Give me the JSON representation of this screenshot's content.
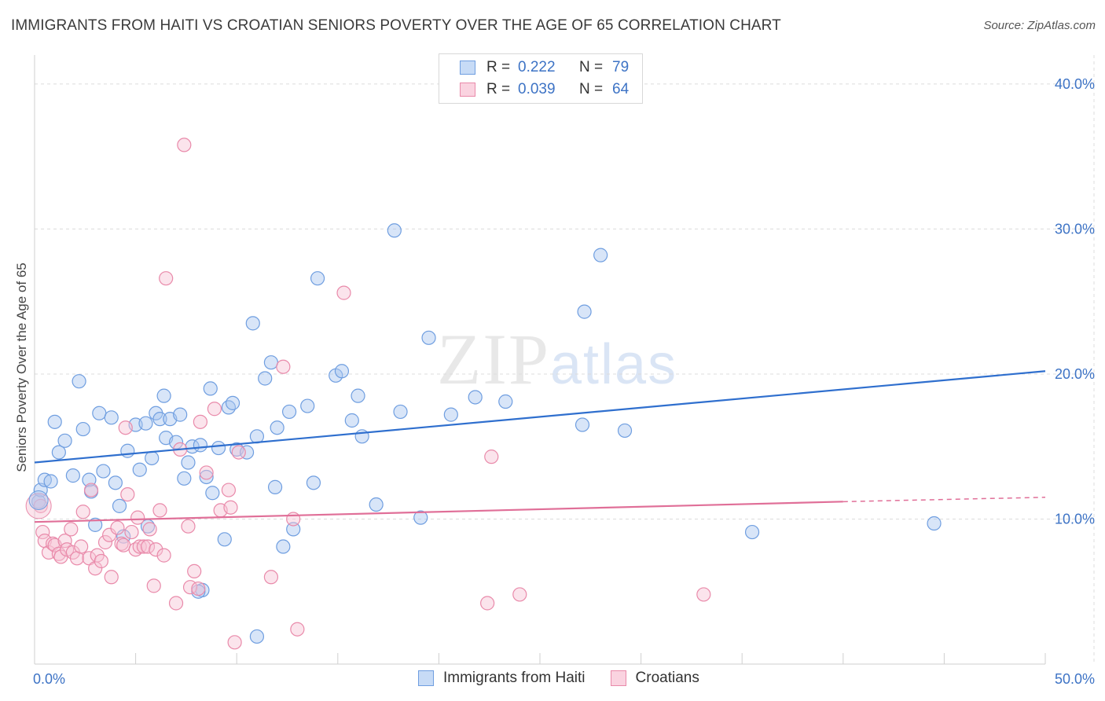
{
  "title": "IMMIGRANTS FROM HAITI VS CROATIAN SENIORS POVERTY OVER THE AGE OF 65 CORRELATION CHART",
  "source": "Source: ZipAtlas.com",
  "watermark": {
    "zip": "ZIP",
    "atlas": "atlas"
  },
  "legend": [
    {
      "r_label": "R =",
      "r_value": "0.222",
      "n_label": "N =",
      "n_value": "79",
      "color": "#a8c6f0",
      "border": "#6f9ee0"
    },
    {
      "r_label": "R =",
      "r_value": "0.039",
      "n_label": "N =",
      "n_value": "64",
      "color": "#f7c3d4",
      "border": "#e98aaa"
    }
  ],
  "bottom_legend": [
    "Immigrants from Haiti",
    "Croatians"
  ],
  "chart_data": {
    "type": "scatter",
    "ylabel": "Seniors Poverty Over the Age of 65",
    "xlim": [
      0,
      50
    ],
    "ylim": [
      0,
      42
    ],
    "x_tick_labels": [
      {
        "x": 0,
        "label": "0.0%"
      },
      {
        "x": 50,
        "label": "50.0%"
      }
    ],
    "y_tick_labels": [
      {
        "y": 10,
        "label": "10.0%"
      },
      {
        "y": 20,
        "label": "20.0%"
      },
      {
        "y": 30,
        "label": "30.0%"
      },
      {
        "y": 40,
        "label": "40.0%"
      }
    ],
    "grid": "horizontal dashed",
    "series": [
      {
        "name": "Immigrants from Haiti",
        "color": "#6f9ee0",
        "fill": "rgba(168,198,240,0.45)",
        "trend": {
          "x": [
            0,
            50
          ],
          "y": [
            13.9,
            20.2
          ],
          "color": "#2f6fce"
        },
        "points": [
          [
            0.2,
            11.2
          ],
          [
            0.3,
            12.0
          ],
          [
            0.5,
            12.7
          ],
          [
            0.8,
            12.6
          ],
          [
            1.0,
            16.7
          ],
          [
            1.2,
            14.6
          ],
          [
            1.5,
            15.4
          ],
          [
            1.9,
            13.0
          ],
          [
            2.2,
            19.5
          ],
          [
            2.4,
            16.2
          ],
          [
            2.7,
            12.7
          ],
          [
            2.8,
            11.9
          ],
          [
            3.0,
            9.6
          ],
          [
            3.2,
            17.3
          ],
          [
            3.4,
            13.3
          ],
          [
            3.8,
            17.0
          ],
          [
            4.0,
            12.5
          ],
          [
            4.2,
            10.9
          ],
          [
            4.4,
            8.8
          ],
          [
            4.6,
            14.7
          ],
          [
            5.0,
            16.5
          ],
          [
            5.2,
            13.4
          ],
          [
            5.5,
            16.6
          ],
          [
            5.6,
            9.5
          ],
          [
            5.8,
            14.2
          ],
          [
            6.0,
            17.3
          ],
          [
            6.2,
            16.9
          ],
          [
            6.4,
            18.5
          ],
          [
            6.5,
            15.6
          ],
          [
            6.7,
            16.9
          ],
          [
            7.0,
            15.3
          ],
          [
            7.2,
            17.2
          ],
          [
            7.4,
            12.8
          ],
          [
            7.6,
            13.9
          ],
          [
            7.8,
            15.0
          ],
          [
            8.2,
            15.1
          ],
          [
            8.5,
            12.9
          ],
          [
            8.7,
            19.0
          ],
          [
            8.8,
            11.8
          ],
          [
            9.1,
            14.9
          ],
          [
            9.4,
            8.6
          ],
          [
            9.6,
            17.7
          ],
          [
            9.8,
            18.0
          ],
          [
            10.0,
            14.8
          ],
          [
            10.5,
            14.6
          ],
          [
            10.8,
            23.5
          ],
          [
            11.0,
            15.7
          ],
          [
            11.4,
            19.7
          ],
          [
            11.7,
            20.8
          ],
          [
            11.9,
            12.2
          ],
          [
            12.0,
            16.3
          ],
          [
            12.3,
            8.1
          ],
          [
            12.6,
            17.4
          ],
          [
            12.8,
            9.3
          ],
          [
            13.5,
            17.8
          ],
          [
            13.8,
            12.5
          ],
          [
            14.0,
            26.6
          ],
          [
            14.9,
            19.9
          ],
          [
            15.2,
            20.2
          ],
          [
            15.7,
            16.8
          ],
          [
            16.0,
            18.5
          ],
          [
            16.2,
            15.7
          ],
          [
            16.9,
            11.0
          ],
          [
            17.8,
            29.9
          ],
          [
            18.1,
            17.4
          ],
          [
            19.1,
            10.1
          ],
          [
            19.5,
            22.5
          ],
          [
            20.6,
            17.2
          ],
          [
            21.8,
            18.4
          ],
          [
            23.3,
            18.1
          ],
          [
            27.1,
            16.5
          ],
          [
            27.2,
            24.3
          ],
          [
            28.0,
            28.2
          ],
          [
            29.2,
            16.1
          ],
          [
            35.5,
            9.1
          ],
          [
            44.5,
            9.7
          ],
          [
            8.3,
            5.1
          ],
          [
            11.0,
            1.9
          ],
          [
            8.1,
            5.0
          ]
        ]
      },
      {
        "name": "Croatians",
        "color": "#e98aaa",
        "fill": "rgba(247,195,212,0.45)",
        "trend": {
          "x": [
            0,
            40
          ],
          "y": [
            9.8,
            11.2
          ],
          "color": "#e06f98",
          "dashed_to": 50,
          "dashed_y": 11.5
        },
        "points": [
          [
            0.3,
            10.9
          ],
          [
            0.4,
            9.1
          ],
          [
            0.5,
            8.5
          ],
          [
            0.7,
            7.7
          ],
          [
            0.9,
            8.3
          ],
          [
            1.0,
            8.2
          ],
          [
            1.2,
            7.6
          ],
          [
            1.3,
            7.4
          ],
          [
            1.5,
            8.5
          ],
          [
            1.6,
            7.9
          ],
          [
            1.8,
            9.3
          ],
          [
            1.9,
            7.7
          ],
          [
            2.1,
            7.3
          ],
          [
            2.3,
            8.1
          ],
          [
            2.4,
            10.5
          ],
          [
            2.7,
            7.3
          ],
          [
            2.8,
            12.0
          ],
          [
            3.0,
            6.6
          ],
          [
            3.1,
            7.5
          ],
          [
            3.3,
            7.1
          ],
          [
            3.5,
            8.4
          ],
          [
            3.7,
            8.9
          ],
          [
            3.8,
            6.0
          ],
          [
            4.1,
            9.4
          ],
          [
            4.3,
            8.3
          ],
          [
            4.4,
            8.2
          ],
          [
            4.5,
            16.3
          ],
          [
            4.6,
            11.7
          ],
          [
            4.8,
            9.1
          ],
          [
            5.0,
            7.9
          ],
          [
            5.1,
            10.1
          ],
          [
            5.2,
            8.1
          ],
          [
            5.4,
            8.1
          ],
          [
            5.6,
            8.1
          ],
          [
            5.7,
            9.3
          ],
          [
            5.9,
            5.4
          ],
          [
            6.0,
            7.9
          ],
          [
            6.2,
            10.6
          ],
          [
            6.4,
            7.5
          ],
          [
            6.5,
            26.6
          ],
          [
            7.0,
            4.2
          ],
          [
            7.2,
            14.8
          ],
          [
            7.4,
            35.8
          ],
          [
            7.6,
            9.5
          ],
          [
            7.7,
            5.3
          ],
          [
            7.9,
            6.4
          ],
          [
            8.1,
            5.2
          ],
          [
            8.2,
            16.7
          ],
          [
            8.5,
            13.2
          ],
          [
            8.9,
            17.6
          ],
          [
            9.2,
            10.6
          ],
          [
            9.6,
            12.0
          ],
          [
            9.7,
            10.8
          ],
          [
            9.9,
            1.5
          ],
          [
            10.1,
            14.6
          ],
          [
            11.7,
            6.0
          ],
          [
            12.3,
            20.5
          ],
          [
            12.8,
            10.0
          ],
          [
            13.0,
            2.4
          ],
          [
            15.3,
            25.6
          ],
          [
            22.4,
            4.2
          ],
          [
            22.6,
            14.3
          ],
          [
            24.0,
            4.8
          ],
          [
            33.1,
            4.8
          ]
        ]
      }
    ]
  }
}
